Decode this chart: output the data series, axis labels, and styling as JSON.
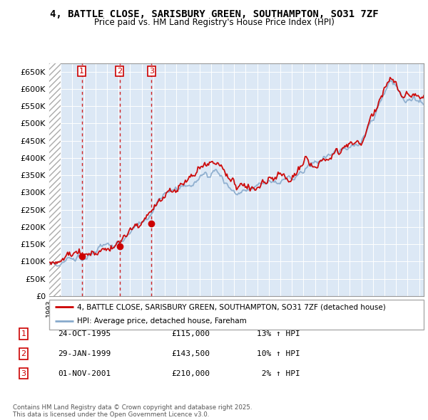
{
  "title": "4, BATTLE CLOSE, SARISBURY GREEN, SOUTHAMPTON, SO31 7ZF",
  "subtitle": "Price paid vs. HM Land Registry's House Price Index (HPI)",
  "ylabel_values": [
    "£0",
    "£50K",
    "£100K",
    "£150K",
    "£200K",
    "£250K",
    "£300K",
    "£350K",
    "£400K",
    "£450K",
    "£500K",
    "£550K",
    "£600K",
    "£650K"
  ],
  "yticks": [
    0,
    50000,
    100000,
    150000,
    200000,
    250000,
    300000,
    350000,
    400000,
    450000,
    500000,
    550000,
    600000,
    650000
  ],
  "ylim": [
    0,
    675000
  ],
  "xlim_start": 1993.0,
  "xlim_end": 2025.4,
  "transactions": [
    {
      "label": "1",
      "date_num": 1995.82,
      "price": 115000
    },
    {
      "label": "2",
      "date_num": 1999.08,
      "price": 143500
    },
    {
      "label": "3",
      "date_num": 2001.84,
      "price": 210000
    }
  ],
  "hatch_end": 1994.0,
  "legend_property": "4, BATTLE CLOSE, SARISBURY GREEN, SOUTHAMPTON, SO31 7ZF (detached house)",
  "legend_hpi": "HPI: Average price, detached house, Fareham",
  "footer": "Contains HM Land Registry data © Crown copyright and database right 2025.\nThis data is licensed under the Open Government Licence v3.0.",
  "table_rows": [
    {
      "num": "1",
      "date": "24-OCT-1995",
      "price": "£115,000",
      "hpi": "13% ↑ HPI"
    },
    {
      "num": "2",
      "date": "29-JAN-1999",
      "price": "£143,500",
      "hpi": "10% ↑ HPI"
    },
    {
      "num": "3",
      "date": "01-NOV-2001",
      "price": "£210,000",
      "hpi": " 2% ↑ HPI"
    }
  ],
  "color_property": "#cc0000",
  "color_hpi": "#88aacc",
  "grid_color": "#dddddd",
  "plot_bg": "#dce8f5"
}
